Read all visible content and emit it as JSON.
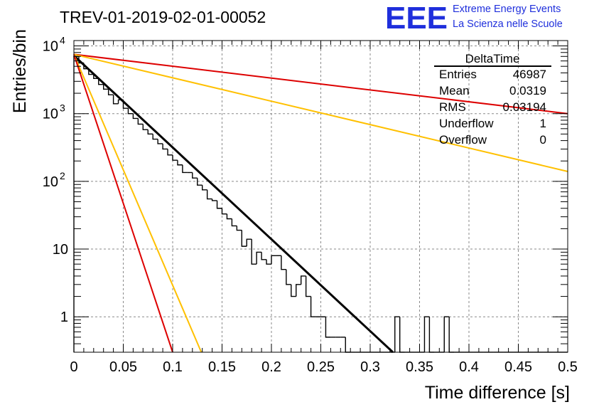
{
  "chart_data": {
    "type": "line",
    "title": "TREV-01-2019-02-01-00052",
    "xlabel": "Time difference [s]",
    "ylabel": "Entries/bin",
    "xlim": [
      0,
      0.5
    ],
    "ylim": [
      0.3,
      12000
    ],
    "y_scale": "log",
    "grid": true,
    "x_ticks": [
      "0",
      "0.05",
      "0.1",
      "0.15",
      "0.2",
      "0.25",
      "0.3",
      "0.35",
      "0.4",
      "0.45",
      "0.5"
    ],
    "x_tick_values": [
      0,
      0.05,
      0.1,
      0.15,
      0.2,
      0.25,
      0.3,
      0.35,
      0.4,
      0.45,
      0.5
    ],
    "y_ticks": [
      {
        "value": 10000,
        "base": "10",
        "exp": "4"
      },
      {
        "value": 1000,
        "base": "10",
        "exp": "3"
      },
      {
        "value": 100,
        "base": "10",
        "exp": "2"
      },
      {
        "value": 10,
        "base": "10",
        "exp": ""
      },
      {
        "value": 1,
        "base": "1",
        "exp": ""
      }
    ],
    "histogram": {
      "name": "DeltaTime",
      "bin_width": 0.005,
      "x_start": 0,
      "values": [
        7000,
        5600,
        4600,
        3800,
        3300,
        2700,
        2300,
        1900,
        1400,
        1600,
        1200,
        1000,
        850,
        700,
        580,
        500,
        420,
        360,
        300,
        245,
        205,
        175,
        135,
        135,
        112,
        88,
        75,
        55,
        52,
        40,
        33,
        28,
        22,
        19,
        11,
        14,
        6,
        9,
        7,
        6,
        8,
        8,
        5,
        3,
        2,
        3,
        4,
        2,
        1,
        1,
        1,
        0.5,
        0.5,
        0.5,
        0.5,
        0,
        0,
        0,
        0,
        0,
        0,
        0,
        0,
        0,
        0,
        1,
        0,
        0,
        0,
        0,
        0,
        1,
        0,
        0,
        0,
        1,
        0,
        0,
        0,
        0,
        0,
        0,
        0,
        0,
        0,
        0,
        0,
        0,
        0,
        0,
        0,
        0,
        0,
        0,
        0,
        0,
        0,
        0,
        0,
        0
      ]
    },
    "series": [
      {
        "color": "#000000",
        "x": [
          0,
          0.323
        ],
        "y": [
          7200,
          0.3
        ]
      },
      {
        "color": "#dd0000",
        "x": [
          0,
          0.5
        ],
        "y": [
          7500,
          1000
        ]
      },
      {
        "color": "#ffc000",
        "x": [
          0,
          0.5
        ],
        "y": [
          7500,
          140
        ]
      },
      {
        "color": "#ffc000",
        "x": [
          0,
          0.129
        ],
        "y": [
          7500,
          0.3
        ]
      },
      {
        "color": "#dd0000",
        "x": [
          0,
          0.1
        ],
        "y": [
          7500,
          0.3
        ]
      }
    ],
    "stats": {
      "title": "DeltaTime",
      "rows": [
        {
          "label": "Entries",
          "value": "46987"
        },
        {
          "label": "Mean",
          "value": "0.0319"
        },
        {
          "label": "RMS",
          "value": "0.03194"
        },
        {
          "label": "Underflow",
          "value": "1"
        },
        {
          "label": "Overflow",
          "value": "0"
        }
      ]
    },
    "logo": {
      "text": "EEE",
      "line1": "Extreme Energy Events",
      "line2": "La Scienza nelle Scuole",
      "color": "#1f2fdc"
    }
  }
}
